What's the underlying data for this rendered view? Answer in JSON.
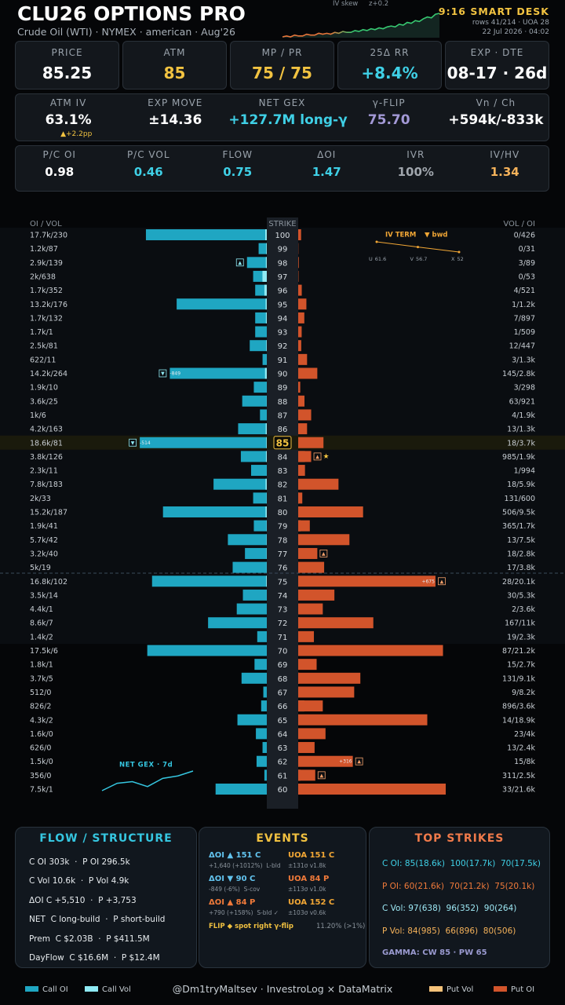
{
  "header": {
    "title": "CLU26 OPTIONS PRO",
    "subtitle": "Crude Oil (WTI) · NYMEX · american · Aug'26",
    "desk": "9:16 SMART DESK",
    "rows": "rows 41/214 · UOA 28",
    "timestamp": "22 Jul 2026 · 04:02",
    "iv_skew": {
      "label": "IV skew",
      "z": "z+0.2",
      "values": [
        2,
        3,
        2,
        4,
        3,
        3,
        5,
        4,
        4,
        6,
        5,
        6,
        5,
        7,
        6,
        8,
        7,
        7,
        9,
        8,
        10,
        9,
        11,
        10,
        12,
        11,
        13,
        14,
        13,
        16,
        15,
        18,
        17,
        20,
        19,
        22,
        24,
        23,
        27,
        28
      ]
    }
  },
  "cards": [
    [
      {
        "label": "PRICE",
        "value": "85.25",
        "color": "#ffffff"
      },
      {
        "label": "ATM",
        "value": "85",
        "color": "#f2c341"
      },
      {
        "label": "MP / PR",
        "value": "75 / 75",
        "color": "#f2c341"
      },
      {
        "label": "25Δ RR",
        "value": "+8.4%",
        "color": "#3fd0e6"
      },
      {
        "label": "EXP · DTE",
        "value": "08-17 · 26d",
        "color": "#ffffff"
      }
    ],
    [
      {
        "label": "ATM IV",
        "value": "63.1%",
        "color": "#ffffff",
        "note": "▲+2.2pp"
      },
      {
        "label": "EXP MOVE",
        "value": "±14.36",
        "color": "#ffffff"
      },
      {
        "label": "NET GEX",
        "value": "+127.7M long-γ",
        "color": "#3fd0e6"
      },
      {
        "label": "γ-FLIP",
        "value": "75.70",
        "color": "#a399d6"
      },
      {
        "label": "Vn / Ch",
        "value": "+594k/-833k",
        "color": "#ffffff"
      }
    ],
    [
      {
        "label": "P/C OI",
        "value": "0.98",
        "color": "#ffffff"
      },
      {
        "label": "P/C VOL",
        "value": "0.46",
        "color": "#3fd0e6"
      },
      {
        "label": "FLOW",
        "value": "0.75",
        "color": "#3fd0e6"
      },
      {
        "label": "ΔOI",
        "value": "1.47",
        "color": "#3fd0e6"
      },
      {
        "label": "IVR",
        "value": "100%",
        "color": "#a0a6ad"
      },
      {
        "label": "IV/HV",
        "value": "1.34",
        "color": "#f5b25a"
      }
    ]
  ],
  "chart_data": {
    "type": "bar",
    "column_titles": [
      "OI / VOL",
      "STRIKE",
      "VOL / OI"
    ],
    "atm": 85,
    "categories": [
      100,
      99,
      98,
      97,
      96,
      95,
      94,
      93,
      92,
      91,
      90,
      89,
      88,
      87,
      86,
      85,
      84,
      83,
      82,
      81,
      80,
      79,
      78,
      77,
      76,
      75,
      74,
      73,
      72,
      71,
      70,
      69,
      68,
      67,
      66,
      65,
      64,
      63,
      62,
      61,
      60
    ],
    "left_labels": [
      "17.7k/230",
      "1.2k/87",
      "2.9k/139",
      "2k/638",
      "1.7k/352",
      "13.2k/176",
      "1.7k/132",
      "1.7k/1",
      "2.5k/81",
      "622/11",
      "14.2k/264",
      "1.9k/10",
      "3.6k/25",
      "1k/6",
      "4.2k/163",
      "18.6k/81",
      "3.8k/126",
      "2.3k/11",
      "7.8k/183",
      "2k/33",
      "15.2k/187",
      "1.9k/41",
      "5.7k/42",
      "3.2k/40",
      "5k/19",
      "16.8k/102",
      "3.5k/14",
      "4.4k/1",
      "8.6k/7",
      "1.4k/2",
      "17.5k/6",
      "1.8k/1",
      "3.7k/5",
      "512/0",
      "826/2",
      "4.3k/2",
      "1.6k/0",
      "626/0",
      "1.5k/0",
      "356/0",
      "7.5k/1"
    ],
    "right_labels": [
      "0/426",
      "0/31",
      "3/89",
      "0/53",
      "4/521",
      "1/1.2k",
      "7/897",
      "1/509",
      "12/447",
      "3/1.3k",
      "145/2.8k",
      "3/298",
      "63/921",
      "4/1.9k",
      "13/1.3k",
      "18/3.7k",
      "985/1.9k",
      "1/994",
      "18/5.9k",
      "131/600",
      "506/9.5k",
      "365/1.7k",
      "13/7.5k",
      "18/2.8k",
      "17/3.8k",
      "28/20.1k",
      "30/5.3k",
      "2/3.6k",
      "167/11k",
      "19/2.3k",
      "87/21.2k",
      "15/2.7k",
      "131/9.1k",
      "9/8.2k",
      "896/3.6k",
      "14/18.9k",
      "23/4k",
      "13/2.4k",
      "15/8k",
      "311/2.5k",
      "33/21.6k"
    ],
    "series": [
      {
        "name": "Call OI",
        "color": "#1fa6c2",
        "side": "left",
        "values": [
          17700,
          1200,
          2900,
          2000,
          1700,
          13200,
          1700,
          1700,
          2500,
          622,
          14200,
          1900,
          3600,
          1000,
          4200,
          18600,
          3800,
          2300,
          7800,
          2000,
          15200,
          1900,
          5700,
          3200,
          5000,
          16800,
          3500,
          4400,
          8600,
          1400,
          17500,
          1800,
          3700,
          512,
          826,
          4300,
          1600,
          626,
          1500,
          356,
          7500
        ]
      },
      {
        "name": "Call Vol",
        "color": "#8feaf4",
        "side": "left",
        "values": [
          230,
          87,
          139,
          638,
          352,
          176,
          132,
          1,
          81,
          11,
          264,
          10,
          25,
          6,
          163,
          81,
          126,
          11,
          183,
          33,
          187,
          41,
          42,
          40,
          19,
          102,
          14,
          1,
          7,
          2,
          6,
          1,
          5,
          0,
          2,
          2,
          0,
          0,
          0,
          0,
          1
        ]
      },
      {
        "name": "Put Vol",
        "color": "#f5c27a",
        "side": "right",
        "values": [
          0,
          0,
          3,
          0,
          4,
          1,
          7,
          1,
          12,
          3,
          145,
          3,
          63,
          4,
          13,
          18,
          985,
          1,
          18,
          131,
          506,
          365,
          13,
          18,
          17,
          28,
          30,
          2,
          167,
          19,
          87,
          15,
          131,
          9,
          896,
          14,
          23,
          13,
          15,
          311,
          33
        ]
      },
      {
        "name": "Put OI",
        "color": "#d2542b",
        "side": "right",
        "values": [
          426,
          31,
          89,
          53,
          521,
          1200,
          897,
          509,
          447,
          1300,
          2800,
          298,
          921,
          1900,
          1300,
          3700,
          1900,
          994,
          5900,
          600,
          9500,
          1700,
          7500,
          2800,
          3800,
          20100,
          5300,
          3600,
          11000,
          2300,
          21200,
          2700,
          9100,
          8200,
          3600,
          18900,
          4000,
          2400,
          8000,
          2500,
          21600
        ]
      }
    ],
    "flags": [
      {
        "strike": 98,
        "side": "left",
        "icon": "▲"
      },
      {
        "strike": 90,
        "side": "left",
        "icon": "▼",
        "label": "-849"
      },
      {
        "strike": 85,
        "side": "left",
        "icon": "▼",
        "label": "-514"
      },
      {
        "strike": 84,
        "side": "right",
        "icon": "▲",
        "extra": "★"
      },
      {
        "strike": 77,
        "side": "right",
        "icon": "▲"
      },
      {
        "strike": 75,
        "side": "right",
        "icon": "▲",
        "label": "+675"
      },
      {
        "strike": 62,
        "side": "right",
        "icon": "▲",
        "label": "+316"
      },
      {
        "strike": 61,
        "side": "right",
        "icon": "▲"
      }
    ],
    "iv_term": {
      "title": "IV TERM",
      "tag": "▼ bwd",
      "labels": [
        "U",
        "V",
        "X"
      ],
      "values": [
        61.6,
        56.7,
        52.0
      ]
    },
    "net_gex": {
      "title": "NET GEX · 7d",
      "values": [
        1,
        10,
        12,
        6,
        16,
        19,
        25
      ]
    }
  },
  "panels": {
    "flow": {
      "title": "FLOW / STRUCTURE",
      "lines": [
        "C OI 303k  ·  P OI 296.5k",
        "C Vol 10.6k  ·  P Vol 4.9k",
        "ΔOI C +5,510  ·  P +3,753",
        "NET  C long-build  ·  P short-build",
        "Prem  C $2.03B  ·  P $411.5M",
        "DayFlow  C $16.6M  ·  P $12.4M"
      ]
    },
    "events": {
      "title": "EVENTS",
      "items": [
        {
          "title": "ΔOI ▲ 151 C",
          "sub": "+1,640 (+1012%)  L-bld",
          "color": "#62c3ee"
        },
        {
          "title": "UOA 151 C",
          "sub": "±131σ v1.8k",
          "color": "#f2a735"
        },
        {
          "title": "ΔOI ▼ 90 C",
          "sub": "-849 (-6%)  S-cov",
          "color": "#62c3ee"
        },
        {
          "title": "UOA 84 P",
          "sub": "±113σ v1.0k",
          "color": "#f07a3a"
        },
        {
          "title": "ΔOI ▲ 84 P",
          "sub": "+790 (+158%)  S-bld ✓",
          "color": "#f07a3a"
        },
        {
          "title": "UOA 152 C",
          "sub": "±103σ v0.6k",
          "color": "#f2a735"
        }
      ],
      "footer": "FLIP ◆ spot right γ-flip",
      "footer_note": "11.20% (>1%)"
    },
    "top_strikes": {
      "title": "TOP STRIKES",
      "lines": [
        {
          "text": "C OI: 85(18.6k)  100(17.7k)  70(17.5k)",
          "color": "#3fd0e6"
        },
        {
          "text": "P OI: 60(21.6k)  70(21.2k)  75(20.1k)",
          "color": "#f07a3a"
        },
        {
          "text": "C Vol: 97(638)  96(352)  90(264)",
          "color": "#9ee9f5"
        },
        {
          "text": "P Vol: 84(985)  66(896)  80(506)",
          "color": "#f5b25a"
        }
      ],
      "gamma": "GAMMA: CW 85 · PW 65"
    }
  },
  "footer": {
    "credit": "@Dm1tryMaltsev  ·  InvestroLog × DataMatrix"
  }
}
